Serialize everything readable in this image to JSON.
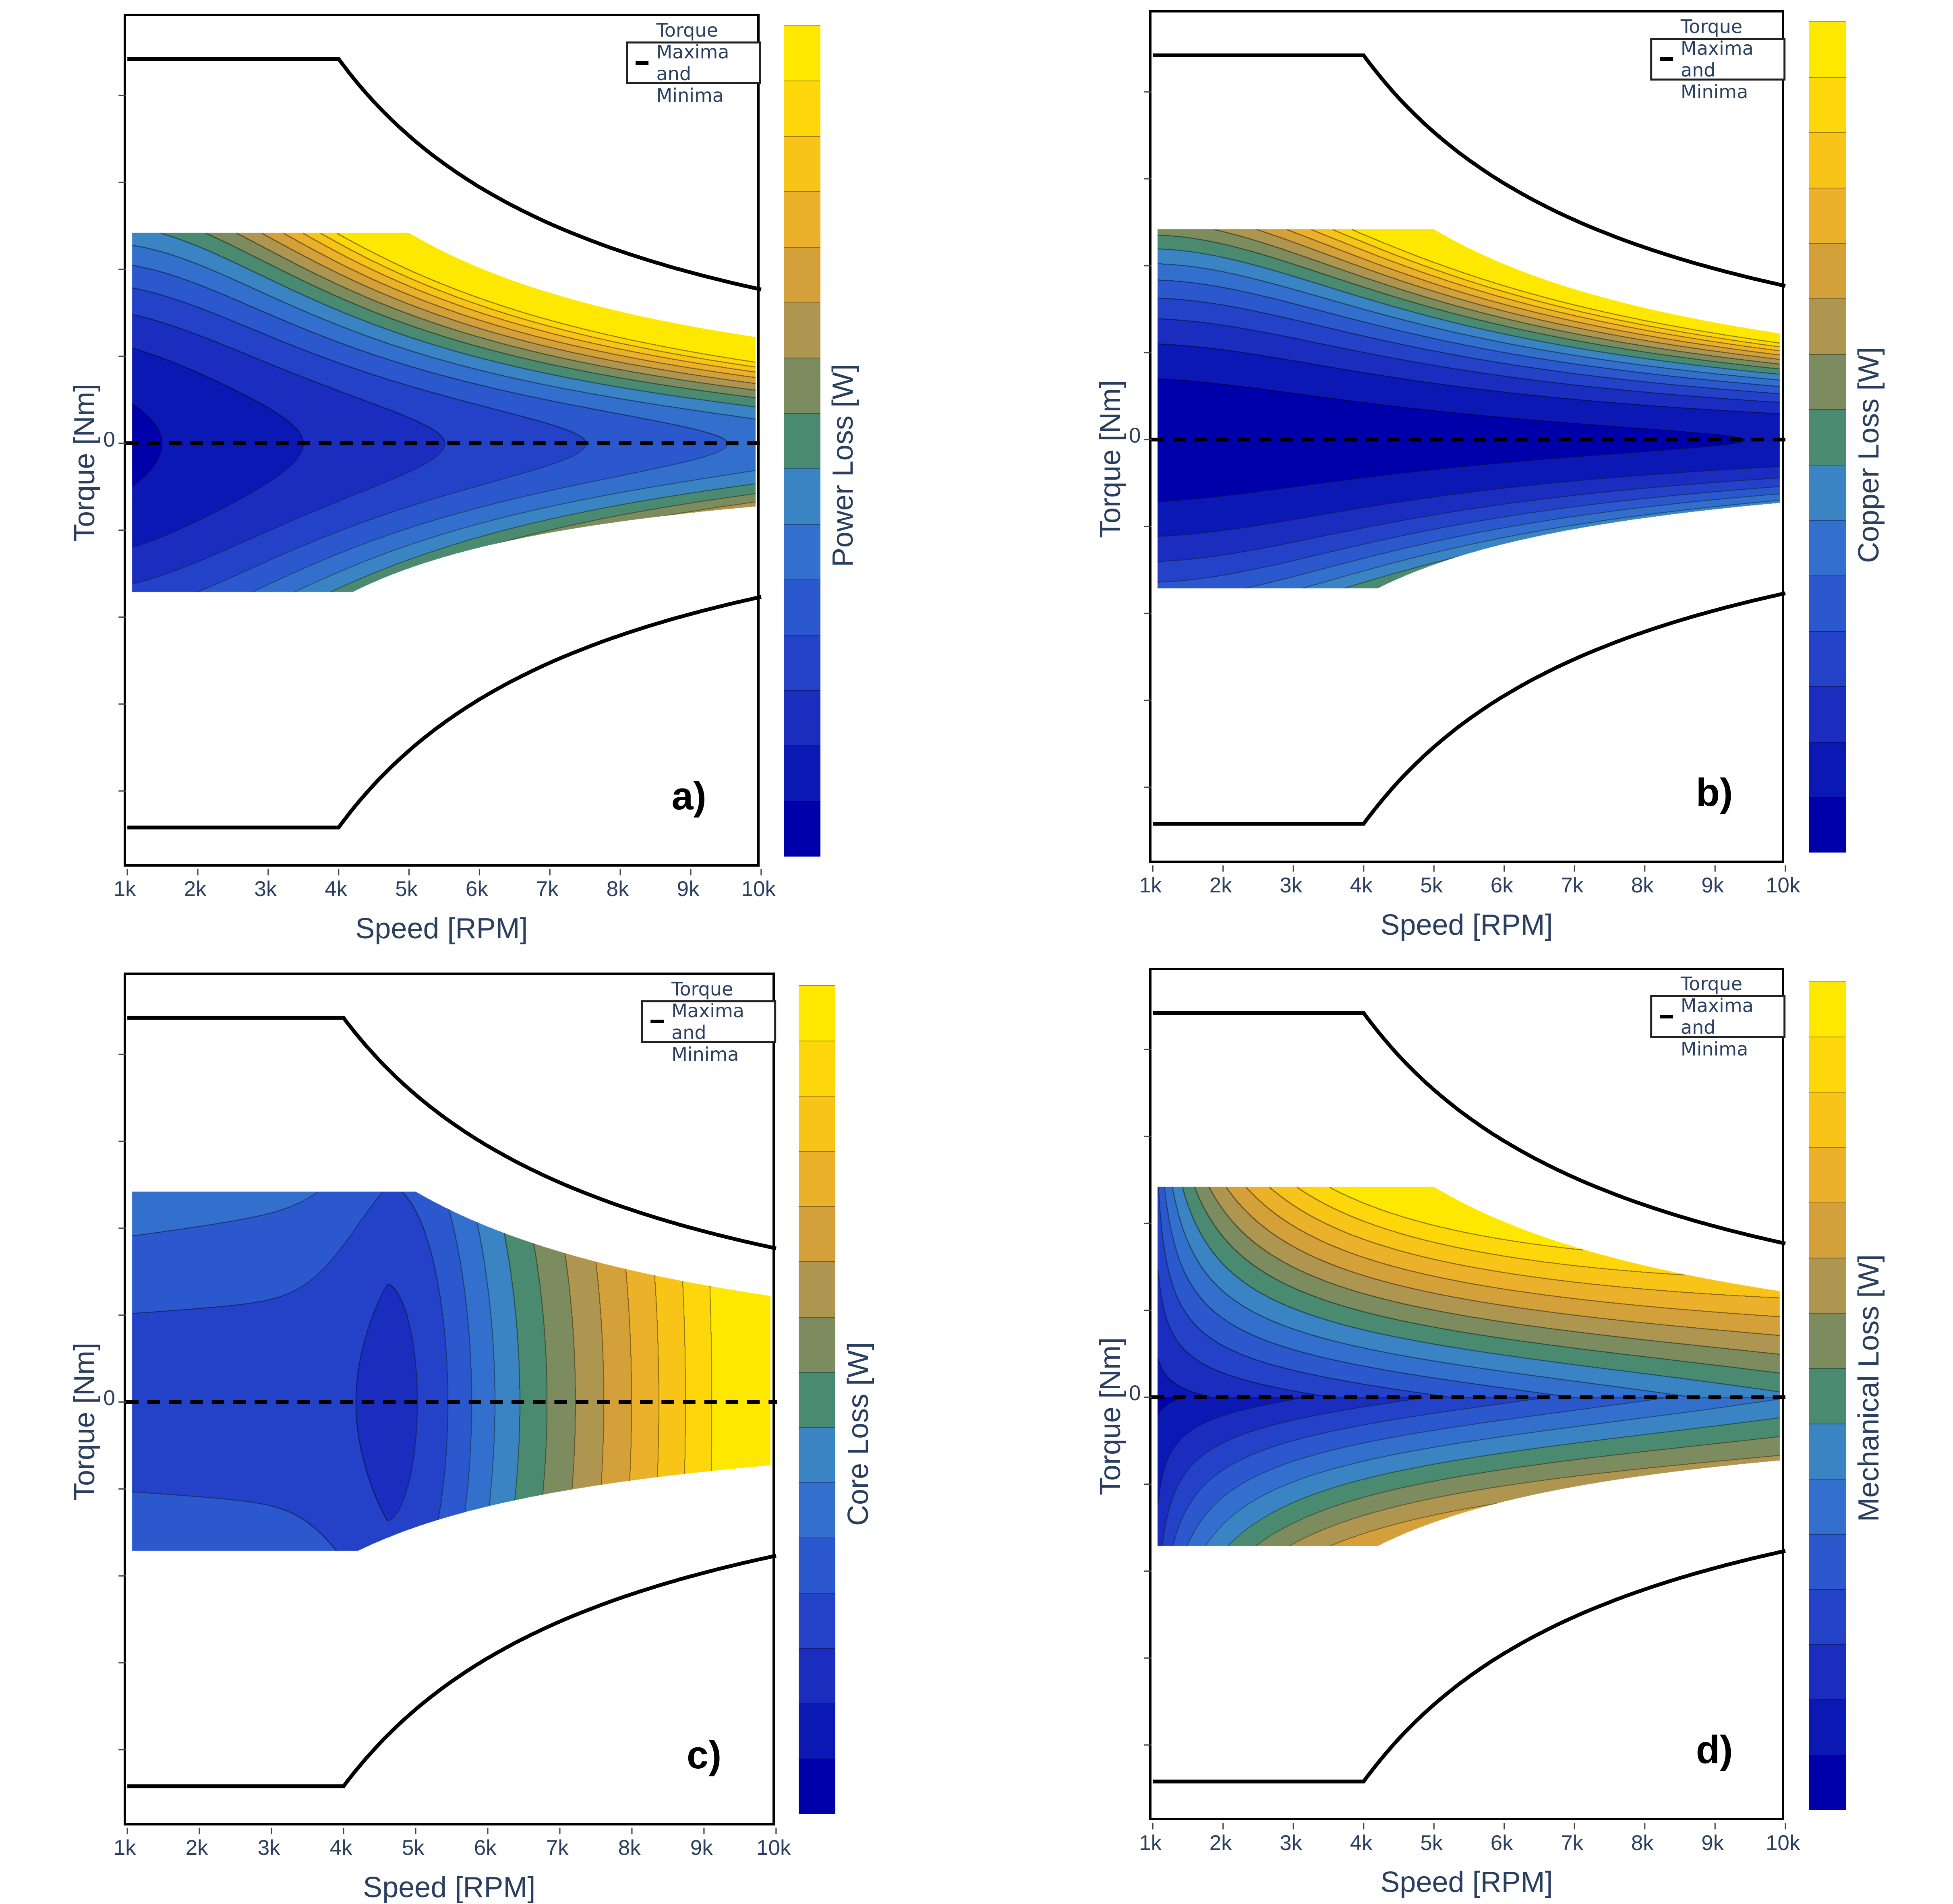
{
  "colorscale": [
    "#0000aa",
    "#0c18b4",
    "#1a2dbf",
    "#2342c8",
    "#2b58cd",
    "#3370cd",
    "#3a84c3",
    "#4a8a70",
    "#7c8c5e",
    "#ae9650",
    "#d4a03a",
    "#ebb12a",
    "#f8c418",
    "#fed70a",
    "#ffe800"
  ],
  "chart_data": [
    {
      "panel_label": "a)",
      "type": "contour",
      "metric": "power",
      "xlabel": "Speed [RPM]",
      "ylabel": "Torque [Nm]",
      "x_ticks": [
        "1k",
        "2k",
        "3k",
        "4k",
        "5k",
        "6k",
        "7k",
        "8k",
        "9k",
        "10k"
      ],
      "xlim": [
        1000,
        10000
      ],
      "y_ticks": [
        "0"
      ],
      "colorbar_title": "Power Loss [W]",
      "legend": [
        "Torque Maxima and Minima"
      ],
      "legend_placement": "top-right",
      "envelope": {
        "corner_speed_rpm": 4000
      },
      "zero_line": "dashed",
      "grid": false
    },
    {
      "panel_label": "b)",
      "type": "contour",
      "metric": "copper",
      "xlabel": "Speed [RPM]",
      "ylabel": "Torque [Nm]",
      "x_ticks": [
        "1k",
        "2k",
        "3k",
        "4k",
        "5k",
        "6k",
        "7k",
        "8k",
        "9k",
        "10k"
      ],
      "xlim": [
        1000,
        10000
      ],
      "y_ticks": [
        "0"
      ],
      "colorbar_title": "Copper Loss [W]",
      "legend": [
        "Torque Maxima and Minima"
      ],
      "legend_placement": "top-right",
      "envelope": {
        "corner_speed_rpm": 4000
      },
      "zero_line": "dashed",
      "grid": false
    },
    {
      "panel_label": "c)",
      "type": "contour",
      "metric": "core",
      "xlabel": "Speed [RPM]",
      "ylabel": "Torque [Nm]",
      "x_ticks": [
        "1k",
        "2k",
        "3k",
        "4k",
        "5k",
        "6k",
        "7k",
        "8k",
        "9k",
        "10k"
      ],
      "xlim": [
        1000,
        10000
      ],
      "y_ticks": [
        "0"
      ],
      "colorbar_title": "Core Loss [W]",
      "legend": [
        "Torque Maxima and Minima"
      ],
      "legend_placement": "top-right",
      "envelope": {
        "corner_speed_rpm": 4000
      },
      "zero_line": "dashed",
      "grid": false
    },
    {
      "panel_label": "d)",
      "type": "contour",
      "metric": "mechanical",
      "xlabel": "Speed [RPM]",
      "ylabel": "Torque [Nm]",
      "x_ticks": [
        "1k",
        "2k",
        "3k",
        "4k",
        "5k",
        "6k",
        "7k",
        "8k",
        "9k",
        "10k"
      ],
      "xlim": [
        1000,
        10000
      ],
      "y_ticks": [
        "0"
      ],
      "colorbar_title": "Mechanical Loss [W]",
      "legend": [
        "Torque Maxima and Minima"
      ],
      "legend_placement": "top-right",
      "envelope": {
        "corner_speed_rpm": 4000
      },
      "zero_line": "dashed",
      "grid": false
    }
  ]
}
